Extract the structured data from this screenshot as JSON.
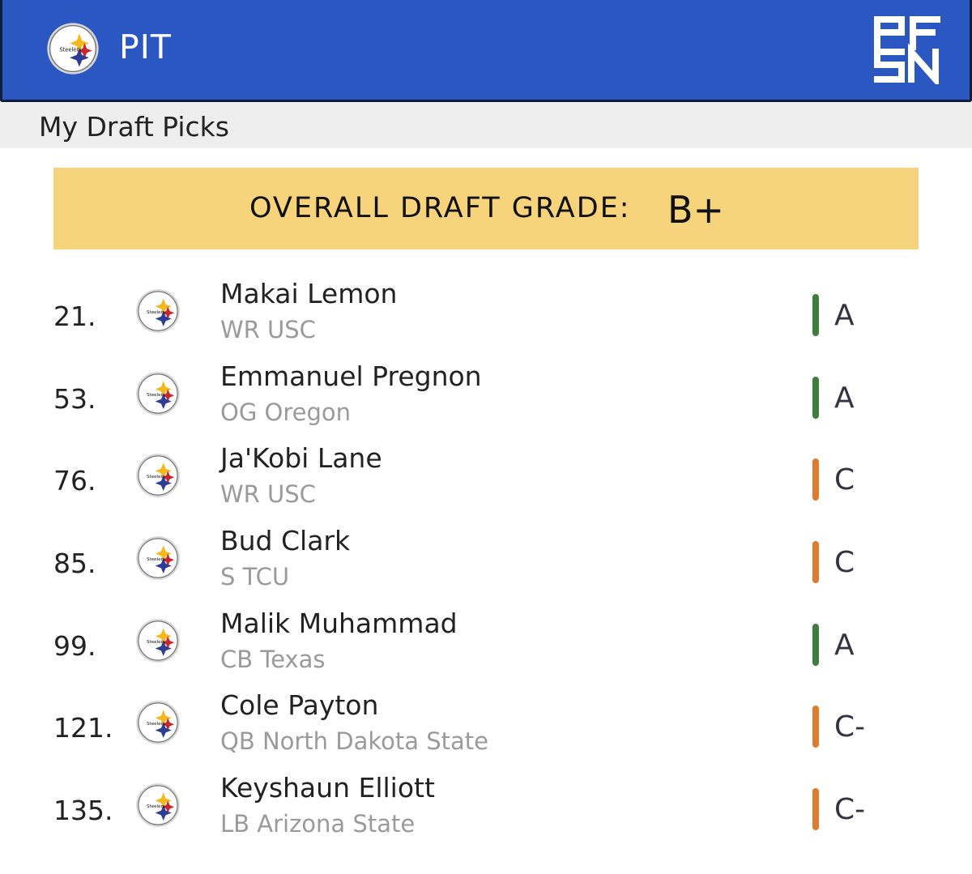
{
  "header": {
    "team_abbr": "PIT",
    "team_logo": "steelers-logo",
    "brand_logo": "pfsn-logo",
    "brand_color": "#2a57c1"
  },
  "subheader": {
    "title": "My Draft Picks"
  },
  "overall": {
    "label": "OVERALL DRAFT GRADE:",
    "grade": "B+",
    "banner_color": "#f7d47c"
  },
  "grade_colors": {
    "A": "#3e7d3b",
    "C": "#e07a2f",
    "C-": "#e07a2f"
  },
  "picks": [
    {
      "number": "21.",
      "name": "Makai Lemon",
      "meta": "WR USC",
      "grade": "A"
    },
    {
      "number": "53.",
      "name": "Emmanuel Pregnon",
      "meta": "OG Oregon",
      "grade": "A"
    },
    {
      "number": "76.",
      "name": "Ja'Kobi Lane",
      "meta": "WR USC",
      "grade": "C"
    },
    {
      "number": "85.",
      "name": "Bud Clark",
      "meta": "S TCU",
      "grade": "C"
    },
    {
      "number": "99.",
      "name": "Malik Muhammad",
      "meta": "CB Texas",
      "grade": "A"
    },
    {
      "number": "121.",
      "name": "Cole Payton",
      "meta": "QB North Dakota State",
      "grade": "C-"
    },
    {
      "number": "135.",
      "name": "Keyshaun Elliott",
      "meta": "LB Arizona State",
      "grade": "C-"
    }
  ]
}
